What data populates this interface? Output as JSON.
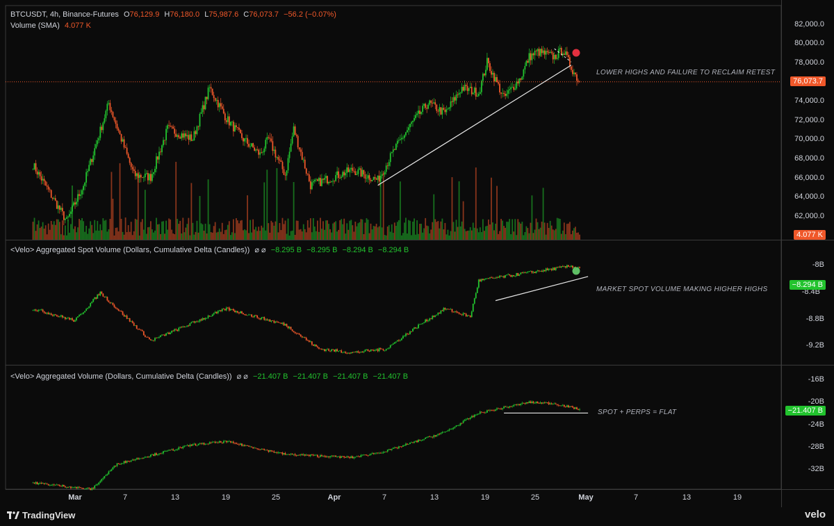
{
  "header": {
    "symbol": "BTCUSDT, 4h, Binance-Futures",
    "o_label": "O",
    "o_value": "76,129.9",
    "h_label": "H",
    "h_value": "76,180.0",
    "l_label": "L",
    "l_value": "75,987.6",
    "c_label": "C",
    "c_value": "76,073.7",
    "change": "−56.2 (−0.07%)",
    "volume_label": "Volume (SMA)",
    "volume_value": "4.077 K"
  },
  "pane2": {
    "title": "<Velo> Aggregated Spot Volume (Dollars, Cumulative Delta (Candles))",
    "icons": "⌀ ⌀",
    "values": [
      "−8.295 B",
      "−8.295 B",
      "−8.294 B",
      "−8.294 B"
    ]
  },
  "pane3": {
    "title": "<Velo> Aggregated Volume (Dollars, Cumulative Delta (Candles))",
    "icons": "⌀ ⌀",
    "values": [
      "−21.407 B",
      "−21.407 B",
      "−21.407 B",
      "−21.407 B"
    ]
  },
  "annotations": {
    "a1": "LOWER HIGHS AND FAILURE TO RECLAIM RETEST",
    "a2": "MARKET SPOT VOLUME MAKING HIGHER HIGHS",
    "a3": "SPOT + PERPS = FLAT"
  },
  "badges": {
    "price": "76,073.7",
    "volume": "4.077 K",
    "spot": "−8.294 B",
    "agg": "−21.407 B"
  },
  "footer": {
    "left": "TradingView",
    "right": "velo"
  },
  "colors": {
    "up": "#22c32e",
    "down": "#f0582a",
    "bg": "#0b0b0b",
    "grid": "#2a2a2a"
  },
  "chart_data": [
    {
      "type": "candlestick",
      "title": "BTCUSDT, 4h, Binance-Futures",
      "x_ticks": [
        "Mar",
        "7",
        "13",
        "19",
        "25",
        "Apr",
        "7",
        "13",
        "19",
        "25",
        "May",
        "7",
        "13",
        "19"
      ],
      "y_ticks": [
        "82,000.0",
        "80,000.0",
        "78,000.0",
        "76,000.0",
        "74,000.0",
        "72,000.0",
        "70,000.0",
        "68,000.0",
        "66,000.0",
        "64,000.0",
        "62,000.0"
      ],
      "ylim": [
        60700,
        83500
      ],
      "last_price": 76073.7,
      "key_points": [
        {
          "date": "Feb 24",
          "price": 68000
        },
        {
          "date": "Feb 28",
          "price": 62500
        },
        {
          "date": "Mar 2",
          "price": 66000
        },
        {
          "date": "Mar 5",
          "price": 74000
        },
        {
          "date": "Mar 8",
          "price": 67000
        },
        {
          "date": "Mar 10",
          "price": 66800
        },
        {
          "date": "Mar 12",
          "price": 71500
        },
        {
          "date": "Mar 15",
          "price": 70500
        },
        {
          "date": "Mar 17",
          "price": 75500
        },
        {
          "date": "Mar 19",
          "price": 72500
        },
        {
          "date": "Mar 21",
          "price": 70500
        },
        {
          "date": "Mar 23",
          "price": 69000
        },
        {
          "date": "Mar 24",
          "price": 70500
        },
        {
          "date": "Mar 26",
          "price": 67000
        },
        {
          "date": "Mar 27",
          "price": 71500
        },
        {
          "date": "Mar 29",
          "price": 66000
        },
        {
          "date": "Apr 3",
          "price": 67500
        },
        {
          "date": "Apr 6",
          "price": 66500
        },
        {
          "date": "Apr 8",
          "price": 69500
        },
        {
          "date": "Apr 10",
          "price": 72000
        },
        {
          "date": "Apr 12",
          "price": 74000
        },
        {
          "date": "Apr 14",
          "price": 73000
        },
        {
          "date": "Apr 16",
          "price": 75500
        },
        {
          "date": "Apr 18",
          "price": 75000
        },
        {
          "date": "Apr 19",
          "price": 78000
        },
        {
          "date": "Apr 21",
          "price": 74500
        },
        {
          "date": "Apr 23",
          "price": 76500
        },
        {
          "date": "Apr 24",
          "price": 78500
        },
        {
          "date": "Apr 25",
          "price": 79000
        },
        {
          "date": "Apr 27",
          "price": 78500
        },
        {
          "date": "Apr 28",
          "price": 79200
        },
        {
          "date": "Apr 29",
          "price": 77500
        },
        {
          "date": "Apr 30",
          "price": 76000
        }
      ],
      "volume": "Volume (SMA) 4.077 K"
    },
    {
      "type": "candlestick",
      "title": "<Velo> Aggregated Spot Volume (Dollars, Cumulative Delta (Candles))",
      "y_ticks": [
        "-8B",
        "-8.4B",
        "-8.8B",
        "-9.2B"
      ],
      "ylim": [
        -9.5,
        -7.95
      ],
      "last_value": -8.294,
      "key_points": [
        {
          "date": "Feb 24",
          "value": -8.8
        },
        {
          "date": "Mar 1",
          "value": -8.95
        },
        {
          "date": "Mar 4",
          "value": -8.6
        },
        {
          "date": "Mar 10",
          "value": -9.2
        },
        {
          "date": "Mar 19",
          "value": -8.8
        },
        {
          "date": "Mar 26",
          "value": -9.0
        },
        {
          "date": "Mar 30",
          "value": -9.3
        },
        {
          "date": "Apr 3",
          "value": -9.35
        },
        {
          "date": "Apr 7",
          "value": -9.3
        },
        {
          "date": "Apr 11",
          "value": -9.0
        },
        {
          "date": "Apr 14",
          "value": -8.8
        },
        {
          "date": "Apr 17",
          "value": -8.9
        },
        {
          "date": "Apr 18",
          "value": -8.45
        },
        {
          "date": "Apr 24",
          "value": -8.35
        },
        {
          "date": "Apr 29",
          "value": -8.27
        },
        {
          "date": "Apr 30",
          "value": -8.294
        }
      ]
    },
    {
      "type": "candlestick",
      "title": "<Velo> Aggregated Volume (Dollars, Cumulative Delta (Candles))",
      "y_ticks": [
        "-16B",
        "-20B",
        "-24B",
        "-28B",
        "-32B"
      ],
      "ylim": [
        -34,
        -14.5
      ],
      "last_value": -21.407,
      "key_points": [
        {
          "date": "Feb 24",
          "value": -33
        },
        {
          "date": "Mar 3",
          "value": -34
        },
        {
          "date": "Mar 6",
          "value": -30
        },
        {
          "date": "Mar 15",
          "value": -27
        },
        {
          "date": "Mar 19",
          "value": -26.5
        },
        {
          "date": "Mar 26",
          "value": -28.5
        },
        {
          "date": "Apr 3",
          "value": -29
        },
        {
          "date": "Apr 7",
          "value": -28
        },
        {
          "date": "Apr 14",
          "value": -25
        },
        {
          "date": "Apr 18",
          "value": -22
        },
        {
          "date": "Apr 24",
          "value": -20.3
        },
        {
          "date": "Apr 27",
          "value": -20.5
        },
        {
          "date": "Apr 30",
          "value": -21.4
        }
      ]
    }
  ]
}
